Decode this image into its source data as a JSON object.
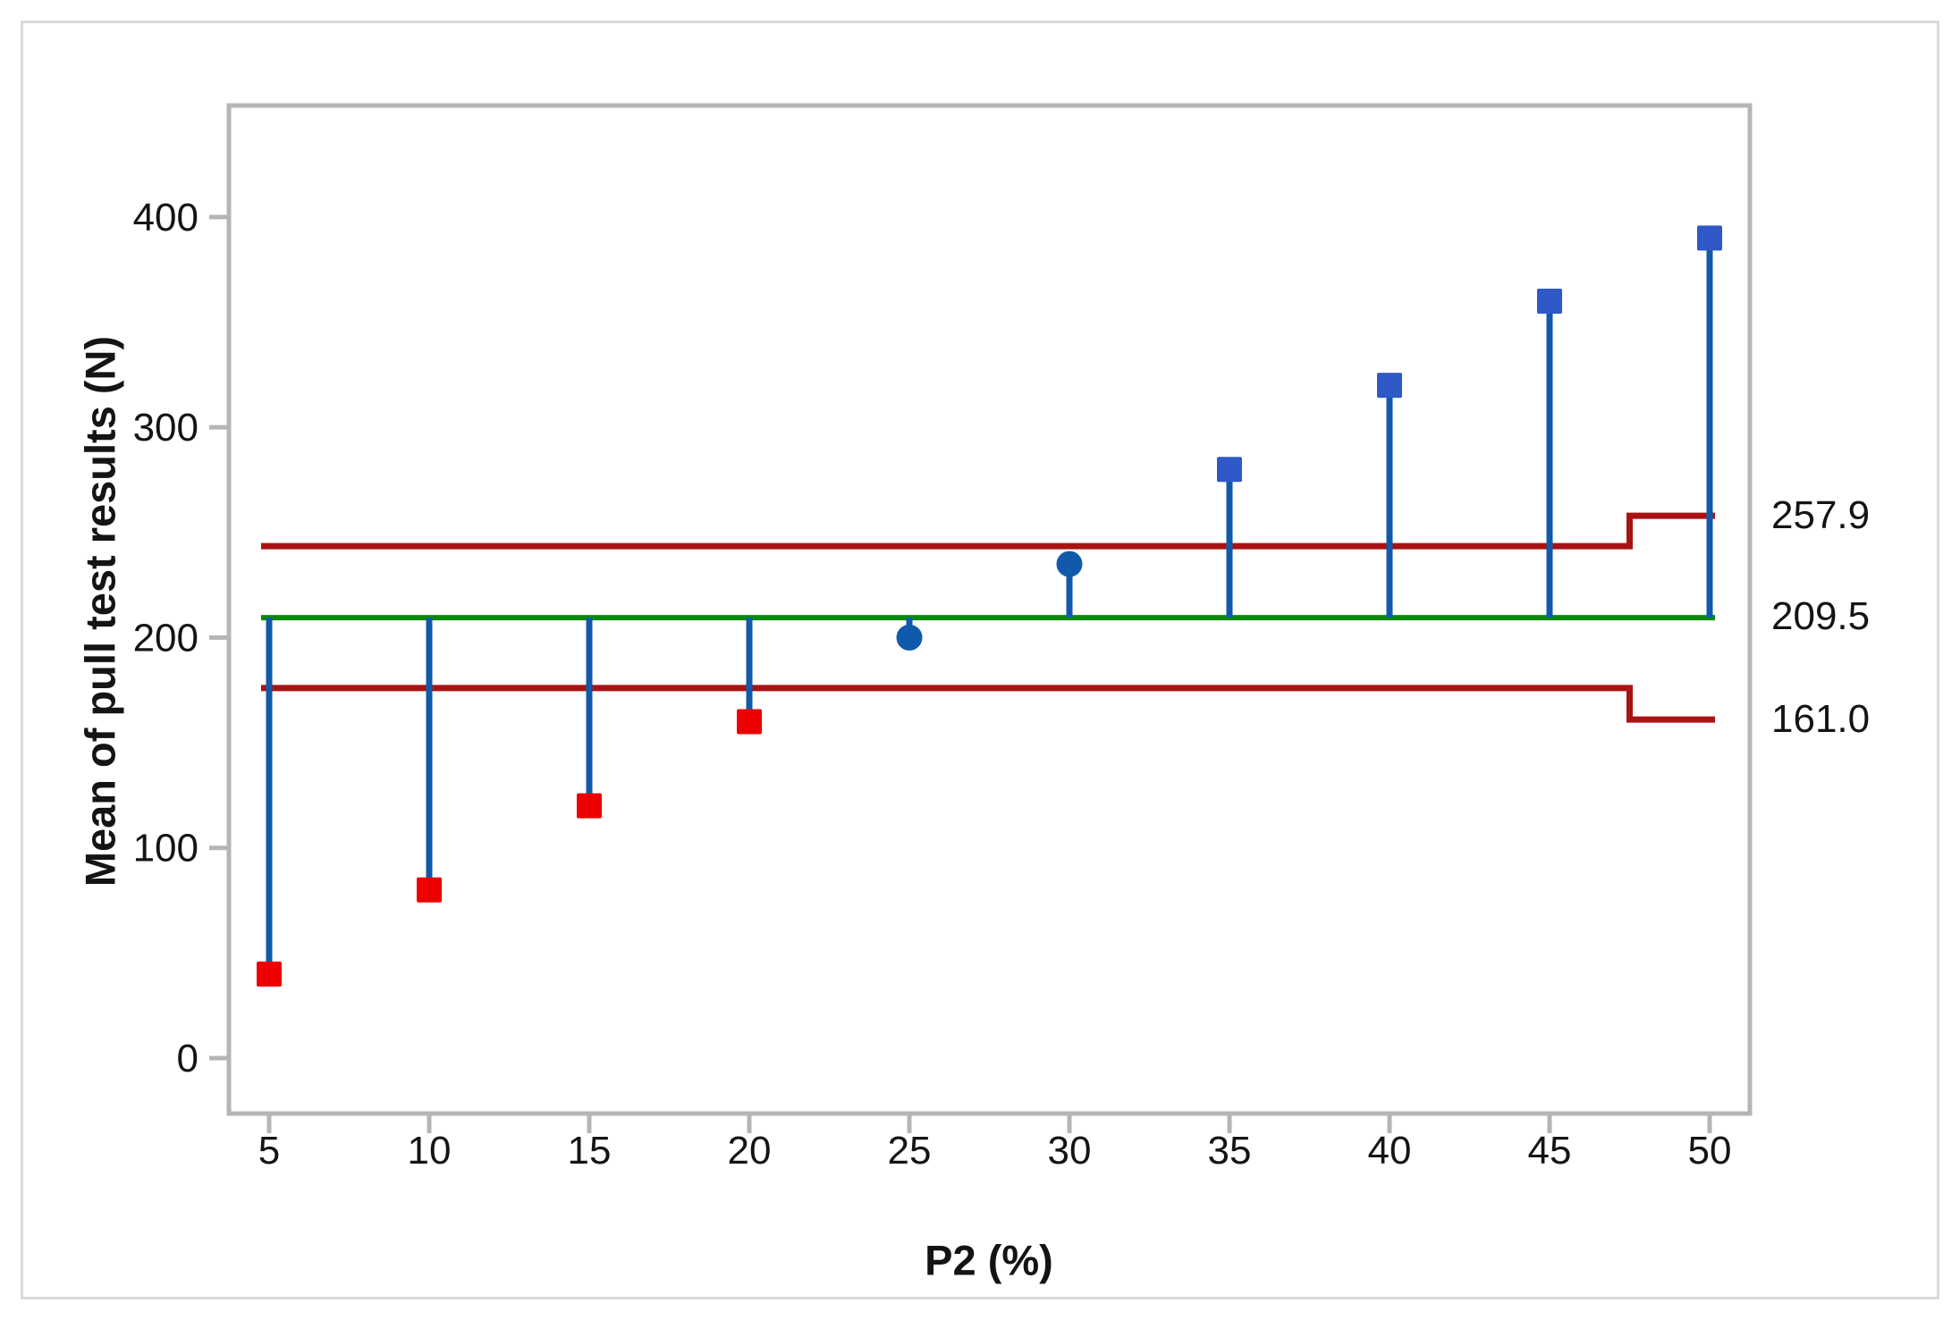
{
  "figure": {
    "background_color": "#ffffff",
    "outer_border_color": "#dadada",
    "plot_border_color": "#b5b5b5"
  },
  "chart_data": {
    "type": "scatter",
    "subtype": "analysis-of-means-decision-chart",
    "title": "",
    "xlabel": "P2 (%)",
    "ylabel": "Mean of pull test results (N)",
    "categories": [
      5,
      10,
      15,
      20,
      25,
      30,
      35,
      40,
      45,
      50
    ],
    "points": [
      {
        "x": 5,
        "mean": 40,
        "marker": "square",
        "status": "below_lower_limit"
      },
      {
        "x": 10,
        "mean": 80,
        "marker": "square",
        "status": "below_lower_limit"
      },
      {
        "x": 15,
        "mean": 120,
        "marker": "square",
        "status": "below_lower_limit"
      },
      {
        "x": 20,
        "mean": 160,
        "marker": "square",
        "status": "below_lower_limit"
      },
      {
        "x": 25,
        "mean": 200,
        "marker": "circle",
        "status": "in_control"
      },
      {
        "x": 30,
        "mean": 235,
        "marker": "circle",
        "status": "in_control"
      },
      {
        "x": 35,
        "mean": 280,
        "marker": "square",
        "status": "above_upper_limit"
      },
      {
        "x": 40,
        "mean": 320,
        "marker": "square",
        "status": "above_upper_limit"
      },
      {
        "x": 45,
        "mean": 360,
        "marker": "square",
        "status": "above_upper_limit"
      },
      {
        "x": 50,
        "mean": 390,
        "marker": "square",
        "status": "above_upper_limit"
      }
    ],
    "center_line": {
      "value": 209.5,
      "label": "209.5"
    },
    "upper_decision_limit": {
      "initial_value": 243.5,
      "final_value": 257.9,
      "label": "257.9",
      "step_between_x": [
        45,
        50
      ]
    },
    "lower_decision_limit": {
      "initial_value": 176.0,
      "final_value": 161.0,
      "label": "161.0",
      "step_between_x": [
        45,
        50
      ]
    },
    "xaxis": {
      "tick_labels": [
        "5",
        "10",
        "15",
        "20",
        "25",
        "30",
        "35",
        "40",
        "45",
        "50"
      ]
    },
    "yaxis": {
      "tick_values": [
        0,
        100,
        200,
        300,
        400
      ],
      "tick_labels": [
        "0",
        "100",
        "200",
        "300",
        "400"
      ],
      "ylim": [
        -26,
        453
      ]
    },
    "grid": "off",
    "legend": "none",
    "colors": {
      "out_of_control_low_marker": "#ec0000",
      "out_of_control_high_marker": "#2e59c6",
      "in_control_marker": "#1159aa",
      "stem_line": "#1159aa",
      "decision_limit_line": "#a91313",
      "center_line": "#0a8a0a"
    }
  }
}
